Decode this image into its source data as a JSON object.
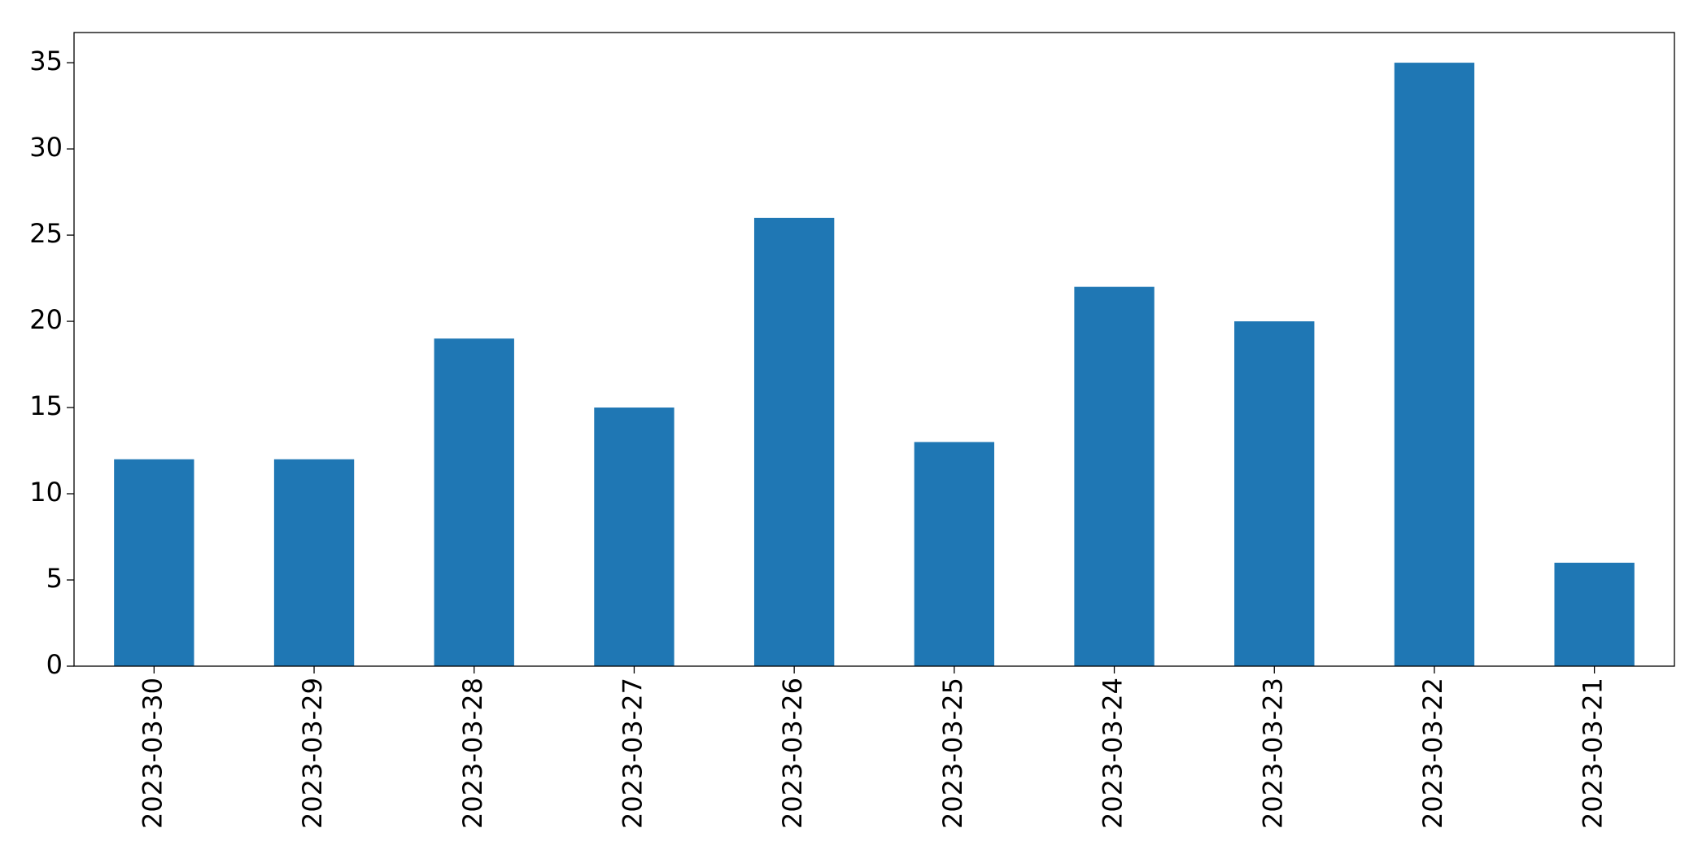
{
  "chart_data": {
    "type": "bar",
    "categories": [
      "2023-03-30",
      "2023-03-29",
      "2023-03-28",
      "2023-03-27",
      "2023-03-26",
      "2023-03-25",
      "2023-03-24",
      "2023-03-23",
      "2023-03-22",
      "2023-03-21"
    ],
    "values": [
      12,
      12,
      19,
      15,
      26,
      13,
      22,
      20,
      35,
      6
    ],
    "color": "#1f77b4",
    "ylim": [
      0,
      36.75
    ],
    "yticks": [
      0,
      5,
      10,
      15,
      20,
      25,
      30,
      35
    ],
    "grid": false
  }
}
